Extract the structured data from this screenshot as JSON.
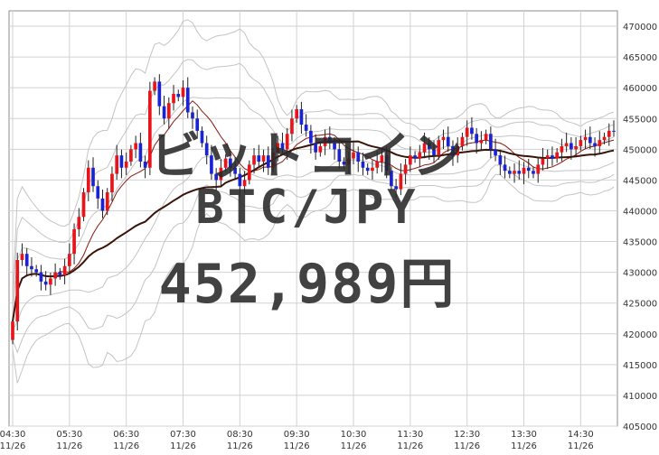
{
  "chart_data": {
    "type": "candlestick",
    "name_overlay": "ビットコイン",
    "pair_overlay": "BTC/JPY",
    "price_overlay": "452,989円",
    "title": "",
    "xlabel": "",
    "ylabel": "",
    "ylim": [
      405000,
      472500
    ],
    "y_ticks": [
      405000,
      410000,
      415000,
      420000,
      425000,
      430000,
      435000,
      440000,
      445000,
      450000,
      455000,
      460000,
      465000,
      470000
    ],
    "y_tick_labels": [
      "405000",
      "410000",
      "415000",
      "420000",
      "425000",
      "430000",
      "435000",
      "440000",
      "445000",
      "450000",
      "455000",
      "460000",
      "465000",
      "470000"
    ],
    "x_ticks": [
      {
        "time": "04:30",
        "date": "11/26",
        "index": 0
      },
      {
        "time": "05:30",
        "date": "11/26",
        "index": 12
      },
      {
        "time": "06:30",
        "date": "11/26",
        "index": 24
      },
      {
        "time": "07:30",
        "date": "11/26",
        "index": 36
      },
      {
        "time": "08:30",
        "date": "11/26",
        "index": 48
      },
      {
        "time": "09:30",
        "date": "11/26",
        "index": 60
      },
      {
        "time": "10:30",
        "date": "11/26",
        "index": 72
      },
      {
        "time": "11:30",
        "date": "11/26",
        "index": 84
      },
      {
        "time": "12:30",
        "date": "11/26",
        "index": 96
      },
      {
        "time": "13:30",
        "date": "11/26",
        "index": 108
      },
      {
        "time": "14:30",
        "date": "11/26",
        "index": 120
      }
    ],
    "grid": true,
    "colors": {
      "up": "#e8141a",
      "down": "#1a22d6",
      "wick": "#222222",
      "ma_long": "#3a1408",
      "ma_short": "#8a1a10",
      "bands": "#c4c4c4",
      "grid": "#d2d2d2"
    },
    "closes": [
      422000,
      432000,
      433000,
      431000,
      430500,
      430000,
      428500,
      428000,
      429000,
      430000,
      429500,
      431000,
      433000,
      437000,
      439000,
      443000,
      447000,
      444000,
      442000,
      440000,
      443000,
      446000,
      449000,
      447000,
      448000,
      450000,
      451000,
      448000,
      447000,
      459500,
      461000,
      457000,
      455000,
      457500,
      459000,
      458500,
      460000,
      456000,
      455000,
      453000,
      451000,
      449000,
      446000,
      445000,
      447000,
      448500,
      447000,
      446000,
      444000,
      445000,
      447500,
      449000,
      448000,
      449000,
      447000,
      449500,
      451000,
      450000,
      452500,
      455000,
      456500,
      454000,
      453000,
      451000,
      449500,
      450500,
      452000,
      451000,
      450000,
      448000,
      447500,
      448500,
      449500,
      448000,
      447000,
      446500,
      447000,
      448000,
      449000,
      446500,
      444000,
      443500,
      446000,
      447500,
      449000,
      448500,
      449500,
      451000,
      450000,
      449000,
      451500,
      452000,
      450500,
      449000,
      450500,
      452000,
      453500,
      452500,
      451000,
      451500,
      452500,
      450000,
      449000,
      447500,
      446500,
      446000,
      446500,
      446000,
      447000,
      446500,
      446000,
      447500,
      448500,
      449000,
      448500,
      449500,
      450500,
      451000,
      450000,
      450500,
      451500,
      452000,
      451000,
      450500,
      451500,
      452000,
      453000,
      452989
    ]
  }
}
